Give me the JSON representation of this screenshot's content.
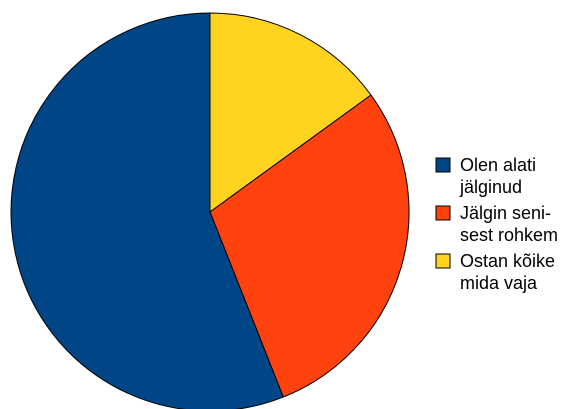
{
  "chart_data": {
    "type": "pie",
    "title": "",
    "start_angle_deg": 0,
    "direction": "clockwise",
    "slices": [
      {
        "label_lines": [
          "Ostan kõike",
          "mida vaja"
        ],
        "value": 15,
        "color": "#ffd320"
      },
      {
        "label_lines": [
          "Jälgin seni-",
          "sest rohkem"
        ],
        "value": 29,
        "color": "#ff420e"
      },
      {
        "label_lines": [
          "Olen alati",
          "jälginud"
        ],
        "value": 56,
        "color": "#004586"
      }
    ],
    "legend": {
      "placement": "right",
      "order": [
        2,
        1,
        0
      ]
    }
  }
}
